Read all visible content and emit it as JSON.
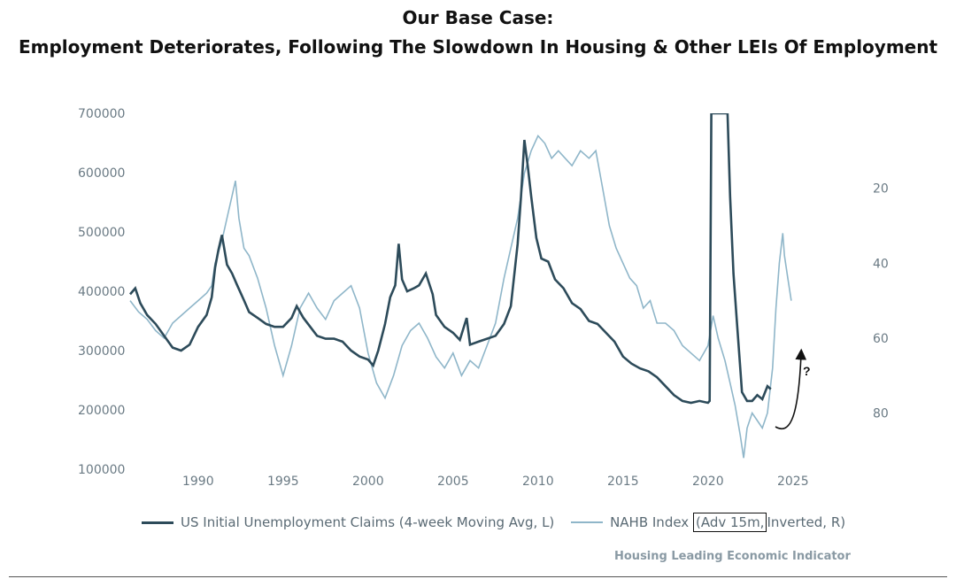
{
  "title_line1": "Our Base Case:",
  "title_line2": "Employment Deteriorates, Following The Slowdown In Housing & Other LEIs Of Employment",
  "legend": {
    "series1": "US Initial Unemployment Claims (4-week Moving Avg, L)",
    "series2_a": "NAHB Index",
    "series2_b": "(Adv 15m,",
    "series2_c": "Inverted, R)"
  },
  "source": "Housing Leading Economic Indicator",
  "annotation": "?",
  "colors": {
    "claims": "#2d4b5a",
    "nahb": "#8fb6c9",
    "axis_text": "#6a7a84"
  },
  "chart_data": {
    "type": "line",
    "title": "Our Base Case: Employment Deteriorates, Following The Slowdown In Housing & Other LEIs Of Employment",
    "x_label": "",
    "y_left_label": "",
    "y_right_label": "",
    "x_range": [
      1986,
      2026
    ],
    "x_ticks": [
      1990,
      1995,
      2000,
      2005,
      2010,
      2015,
      2020,
      2025
    ],
    "y_left_range": [
      100000,
      700000
    ],
    "y_left_ticks": [
      100000,
      200000,
      300000,
      400000,
      500000,
      600000,
      700000
    ],
    "y_right_range": [
      0,
      95
    ],
    "y_right_inverted": true,
    "y_right_ticks": [
      20,
      40,
      60,
      80
    ],
    "series": [
      {
        "name": "US Initial Unemployment Claims (4-week Moving Avg, L)",
        "axis": "left",
        "points": [
          [
            1986.0,
            395000
          ],
          [
            1986.3,
            405000
          ],
          [
            1986.6,
            380000
          ],
          [
            1987.0,
            360000
          ],
          [
            1987.5,
            345000
          ],
          [
            1988.0,
            325000
          ],
          [
            1988.5,
            305000
          ],
          [
            1989.0,
            300000
          ],
          [
            1989.5,
            310000
          ],
          [
            1990.0,
            340000
          ],
          [
            1990.5,
            360000
          ],
          [
            1990.8,
            390000
          ],
          [
            1991.0,
            440000
          ],
          [
            1991.2,
            470000
          ],
          [
            1991.4,
            495000
          ],
          [
            1991.7,
            445000
          ],
          [
            1992.0,
            430000
          ],
          [
            1992.3,
            410000
          ],
          [
            1992.7,
            385000
          ],
          [
            1993.0,
            365000
          ],
          [
            1993.5,
            355000
          ],
          [
            1994.0,
            345000
          ],
          [
            1994.5,
            340000
          ],
          [
            1995.0,
            340000
          ],
          [
            1995.5,
            355000
          ],
          [
            1995.8,
            375000
          ],
          [
            1996.2,
            355000
          ],
          [
            1996.6,
            340000
          ],
          [
            1997.0,
            325000
          ],
          [
            1997.5,
            320000
          ],
          [
            1998.0,
            320000
          ],
          [
            1998.5,
            315000
          ],
          [
            1999.0,
            300000
          ],
          [
            1999.5,
            290000
          ],
          [
            2000.0,
            285000
          ],
          [
            2000.3,
            275000
          ],
          [
            2000.6,
            300000
          ],
          [
            2001.0,
            345000
          ],
          [
            2001.3,
            390000
          ],
          [
            2001.6,
            410000
          ],
          [
            2001.8,
            480000
          ],
          [
            2002.0,
            420000
          ],
          [
            2002.3,
            400000
          ],
          [
            2002.7,
            405000
          ],
          [
            2003.0,
            410000
          ],
          [
            2003.4,
            430000
          ],
          [
            2003.8,
            395000
          ],
          [
            2004.0,
            360000
          ],
          [
            2004.5,
            340000
          ],
          [
            2005.0,
            330000
          ],
          [
            2005.4,
            318000
          ],
          [
            2005.8,
            355000
          ],
          [
            2006.0,
            310000
          ],
          [
            2006.5,
            315000
          ],
          [
            2007.0,
            320000
          ],
          [
            2007.5,
            325000
          ],
          [
            2008.0,
            345000
          ],
          [
            2008.4,
            375000
          ],
          [
            2008.8,
            480000
          ],
          [
            2009.0,
            560000
          ],
          [
            2009.2,
            655000
          ],
          [
            2009.4,
            610000
          ],
          [
            2009.6,
            560000
          ],
          [
            2009.9,
            490000
          ],
          [
            2010.2,
            455000
          ],
          [
            2010.6,
            450000
          ],
          [
            2011.0,
            420000
          ],
          [
            2011.5,
            405000
          ],
          [
            2012.0,
            380000
          ],
          [
            2012.5,
            370000
          ],
          [
            2013.0,
            350000
          ],
          [
            2013.5,
            345000
          ],
          [
            2014.0,
            330000
          ],
          [
            2014.5,
            315000
          ],
          [
            2015.0,
            290000
          ],
          [
            2015.5,
            278000
          ],
          [
            2016.0,
            270000
          ],
          [
            2016.5,
            265000
          ],
          [
            2017.0,
            255000
          ],
          [
            2017.5,
            240000
          ],
          [
            2018.0,
            225000
          ],
          [
            2018.5,
            215000
          ],
          [
            2019.0,
            212000
          ],
          [
            2019.5,
            215000
          ],
          [
            2020.0,
            212000
          ],
          [
            2020.1,
            215000
          ],
          [
            2020.2,
            700000
          ],
          [
            2020.25,
            700000
          ],
          [
            2020.3,
            700000
          ],
          [
            2020.5,
            700000
          ],
          [
            2020.8,
            700000
          ],
          [
            2021.0,
            700000
          ],
          [
            2021.15,
            700000
          ],
          [
            2021.3,
            560000
          ],
          [
            2021.5,
            430000
          ],
          [
            2021.7,
            350000
          ],
          [
            2021.9,
            270000
          ],
          [
            2022.0,
            230000
          ],
          [
            2022.3,
            215000
          ],
          [
            2022.6,
            215000
          ],
          [
            2022.9,
            225000
          ],
          [
            2023.2,
            218000
          ],
          [
            2023.5,
            240000
          ],
          [
            2023.7,
            235000
          ]
        ]
      },
      {
        "name": "NAHB Index (Adv 15m, Inverted, R)",
        "axis": "right",
        "points": [
          [
            1986.0,
            50
          ],
          [
            1986.5,
            53
          ],
          [
            1987.0,
            55
          ],
          [
            1987.5,
            58
          ],
          [
            1988.0,
            60
          ],
          [
            1988.5,
            56
          ],
          [
            1989.0,
            54
          ],
          [
            1989.5,
            52
          ],
          [
            1990.0,
            50
          ],
          [
            1990.5,
            48
          ],
          [
            1990.8,
            46
          ],
          [
            1991.0,
            40
          ],
          [
            1991.4,
            34
          ],
          [
            1991.7,
            28
          ],
          [
            1992.0,
            22
          ],
          [
            1992.2,
            18
          ],
          [
            1992.4,
            28
          ],
          [
            1992.7,
            36
          ],
          [
            1993.0,
            38
          ],
          [
            1993.5,
            44
          ],
          [
            1994.0,
            52
          ],
          [
            1994.5,
            62
          ],
          [
            1995.0,
            70
          ],
          [
            1995.5,
            62
          ],
          [
            1996.0,
            52
          ],
          [
            1996.5,
            48
          ],
          [
            1997.0,
            52
          ],
          [
            1997.5,
            55
          ],
          [
            1998.0,
            50
          ],
          [
            1998.5,
            48
          ],
          [
            1999.0,
            46
          ],
          [
            1999.5,
            52
          ],
          [
            2000.0,
            64
          ],
          [
            2000.5,
            72
          ],
          [
            2001.0,
            76
          ],
          [
            2001.5,
            70
          ],
          [
            2002.0,
            62
          ],
          [
            2002.5,
            58
          ],
          [
            2003.0,
            56
          ],
          [
            2003.5,
            60
          ],
          [
            2004.0,
            65
          ],
          [
            2004.5,
            68
          ],
          [
            2005.0,
            64
          ],
          [
            2005.5,
            70
          ],
          [
            2006.0,
            66
          ],
          [
            2006.5,
            68
          ],
          [
            2007.0,
            62
          ],
          [
            2007.5,
            56
          ],
          [
            2008.0,
            44
          ],
          [
            2008.4,
            36
          ],
          [
            2008.8,
            28
          ],
          [
            2009.2,
            16
          ],
          [
            2009.6,
            10
          ],
          [
            2010.0,
            6
          ],
          [
            2010.4,
            8
          ],
          [
            2010.8,
            12
          ],
          [
            2011.2,
            10
          ],
          [
            2011.6,
            12
          ],
          [
            2012.0,
            14
          ],
          [
            2012.5,
            10
          ],
          [
            2013.0,
            12
          ],
          [
            2013.4,
            10
          ],
          [
            2013.8,
            20
          ],
          [
            2014.2,
            30
          ],
          [
            2014.6,
            36
          ],
          [
            2015.0,
            40
          ],
          [
            2015.4,
            44
          ],
          [
            2015.8,
            46
          ],
          [
            2016.2,
            52
          ],
          [
            2016.6,
            50
          ],
          [
            2017.0,
            56
          ],
          [
            2017.5,
            56
          ],
          [
            2018.0,
            58
          ],
          [
            2018.5,
            62
          ],
          [
            2019.0,
            64
          ],
          [
            2019.5,
            66
          ],
          [
            2020.0,
            62
          ],
          [
            2020.3,
            54
          ],
          [
            2020.6,
            60
          ],
          [
            2021.0,
            66
          ],
          [
            2021.3,
            72
          ],
          [
            2021.6,
            78
          ],
          [
            2021.9,
            86
          ],
          [
            2022.1,
            92
          ],
          [
            2022.3,
            84
          ],
          [
            2022.6,
            80
          ],
          [
            2022.9,
            82
          ],
          [
            2023.2,
            84
          ],
          [
            2023.5,
            80
          ],
          [
            2023.8,
            68
          ],
          [
            2024.0,
            52
          ],
          [
            2024.2,
            40
          ],
          [
            2024.4,
            32
          ],
          [
            2024.5,
            38
          ],
          [
            2024.7,
            44
          ],
          [
            2024.9,
            50
          ]
        ]
      }
    ]
  }
}
